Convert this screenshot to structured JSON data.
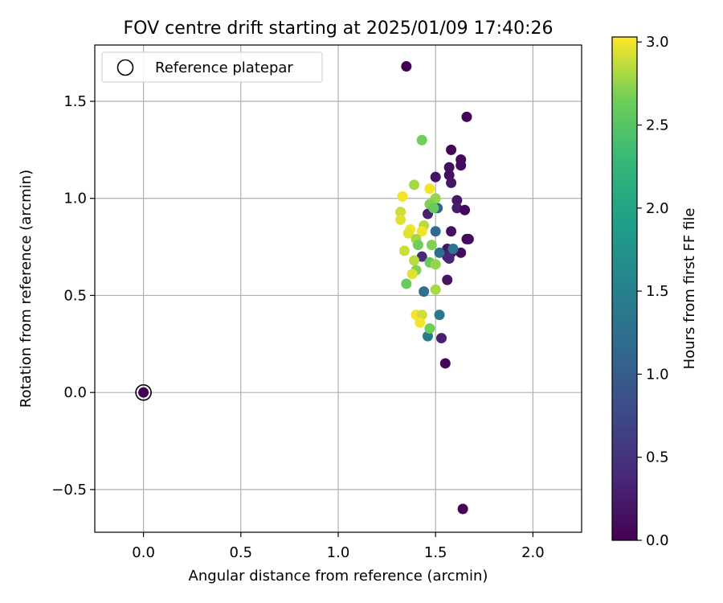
{
  "chart_data": {
    "type": "scatter",
    "title": "FOV centre drift starting at 2025/01/09 17:40:26",
    "xlabel": "Angular distance from reference (arcmin)",
    "ylabel": "Rotation from reference (arcmin)",
    "xlim": [
      -0.25,
      2.25
    ],
    "ylim": [
      -0.72,
      1.79
    ],
    "xticks": [
      0.0,
      0.5,
      1.0,
      1.5,
      2.0
    ],
    "xtick_labels": [
      "0.0",
      "0.5",
      "1.0",
      "1.5",
      "2.0"
    ],
    "yticks": [
      -0.5,
      0.0,
      0.5,
      1.0,
      1.5
    ],
    "ytick_labels": [
      "−0.5",
      "0.0",
      "0.5",
      "1.0",
      "1.5"
    ],
    "grid": true,
    "legend": {
      "position": "top-left",
      "entries": [
        {
          "label": "Reference platepar",
          "marker": "open-circle"
        }
      ]
    },
    "reference_point": {
      "x": 0.0,
      "y": 0.0
    },
    "colorbar": {
      "label": "Hours from first FF file",
      "colormap": "viridis",
      "range": [
        0.0,
        3.03
      ],
      "ticks": [
        0.0,
        0.5,
        1.0,
        1.5,
        2.0,
        2.5,
        3.0
      ],
      "tick_labels": [
        "0.0",
        "0.5",
        "1.0",
        "1.5",
        "2.0",
        "2.5",
        "3.0"
      ]
    },
    "points": [
      {
        "x": 0.0,
        "y": 0.0,
        "hours": 0.0
      },
      {
        "x": 1.35,
        "y": 1.68,
        "hours": 0.0
      },
      {
        "x": 1.66,
        "y": 1.42,
        "hours": 0.02
      },
      {
        "x": 1.58,
        "y": 1.25,
        "hours": 0.05
      },
      {
        "x": 1.63,
        "y": 1.2,
        "hours": 0.08
      },
      {
        "x": 1.63,
        "y": 1.17,
        "hours": 0.1
      },
      {
        "x": 1.57,
        "y": 1.16,
        "hours": 0.12
      },
      {
        "x": 1.57,
        "y": 1.12,
        "hours": 0.15
      },
      {
        "x": 1.5,
        "y": 1.11,
        "hours": 0.18
      },
      {
        "x": 1.58,
        "y": 1.08,
        "hours": 0.2
      },
      {
        "x": 1.61,
        "y": 0.99,
        "hours": 0.22
      },
      {
        "x": 1.61,
        "y": 0.95,
        "hours": 0.25
      },
      {
        "x": 1.65,
        "y": 0.94,
        "hours": 0.08
      },
      {
        "x": 1.46,
        "y": 0.92,
        "hours": 0.3
      },
      {
        "x": 1.58,
        "y": 0.83,
        "hours": 0.15
      },
      {
        "x": 1.66,
        "y": 0.79,
        "hours": 0.05
      },
      {
        "x": 1.67,
        "y": 0.79,
        "hours": 0.1
      },
      {
        "x": 1.63,
        "y": 0.72,
        "hours": 0.12
      },
      {
        "x": 1.56,
        "y": 0.74,
        "hours": 0.2
      },
      {
        "x": 1.58,
        "y": 0.72,
        "hours": 0.25
      },
      {
        "x": 1.56,
        "y": 0.7,
        "hours": 0.3
      },
      {
        "x": 1.57,
        "y": 0.69,
        "hours": 0.35
      },
      {
        "x": 1.43,
        "y": 0.7,
        "hours": 0.4
      },
      {
        "x": 1.56,
        "y": 0.58,
        "hours": 0.18
      },
      {
        "x": 1.53,
        "y": 0.28,
        "hours": 0.3
      },
      {
        "x": 1.55,
        "y": 0.15,
        "hours": 0.05
      },
      {
        "x": 1.64,
        "y": -0.6,
        "hours": 0.02
      },
      {
        "x": 1.51,
        "y": 0.95,
        "hours": 1.1
      },
      {
        "x": 1.5,
        "y": 0.83,
        "hours": 1.15
      },
      {
        "x": 1.59,
        "y": 0.74,
        "hours": 1.3
      },
      {
        "x": 1.52,
        "y": 0.72,
        "hours": 1.2
      },
      {
        "x": 1.44,
        "y": 0.52,
        "hours": 1.25
      },
      {
        "x": 1.52,
        "y": 0.4,
        "hours": 1.35
      },
      {
        "x": 1.46,
        "y": 0.29,
        "hours": 1.4
      },
      {
        "x": 1.43,
        "y": 1.3,
        "hours": 2.65
      },
      {
        "x": 1.39,
        "y": 1.07,
        "hours": 2.8
      },
      {
        "x": 1.47,
        "y": 1.05,
        "hours": 3.0
      },
      {
        "x": 1.33,
        "y": 1.01,
        "hours": 3.0
      },
      {
        "x": 1.5,
        "y": 1.0,
        "hours": 2.75
      },
      {
        "x": 1.47,
        "y": 0.97,
        "hours": 2.7
      },
      {
        "x": 1.49,
        "y": 0.95,
        "hours": 2.6
      },
      {
        "x": 1.32,
        "y": 0.93,
        "hours": 2.9
      },
      {
        "x": 1.32,
        "y": 0.89,
        "hours": 2.95
      },
      {
        "x": 1.44,
        "y": 0.86,
        "hours": 2.85
      },
      {
        "x": 1.37,
        "y": 0.84,
        "hours": 3.0
      },
      {
        "x": 1.43,
        "y": 0.83,
        "hours": 3.0
      },
      {
        "x": 1.36,
        "y": 0.82,
        "hours": 2.95
      },
      {
        "x": 1.4,
        "y": 0.79,
        "hours": 2.8
      },
      {
        "x": 1.41,
        "y": 0.76,
        "hours": 2.65
      },
      {
        "x": 1.48,
        "y": 0.76,
        "hours": 2.7
      },
      {
        "x": 1.34,
        "y": 0.73,
        "hours": 2.9
      },
      {
        "x": 1.39,
        "y": 0.68,
        "hours": 2.85
      },
      {
        "x": 1.47,
        "y": 0.67,
        "hours": 2.6
      },
      {
        "x": 1.5,
        "y": 0.66,
        "hours": 2.75
      },
      {
        "x": 1.4,
        "y": 0.63,
        "hours": 2.7
      },
      {
        "x": 1.38,
        "y": 0.61,
        "hours": 2.95
      },
      {
        "x": 1.35,
        "y": 0.56,
        "hours": 2.6
      },
      {
        "x": 1.5,
        "y": 0.53,
        "hours": 2.8
      },
      {
        "x": 1.4,
        "y": 0.4,
        "hours": 3.0
      },
      {
        "x": 1.43,
        "y": 0.4,
        "hours": 2.9
      },
      {
        "x": 1.42,
        "y": 0.36,
        "hours": 3.0
      },
      {
        "x": 1.47,
        "y": 0.33,
        "hours": 2.65
      }
    ]
  }
}
